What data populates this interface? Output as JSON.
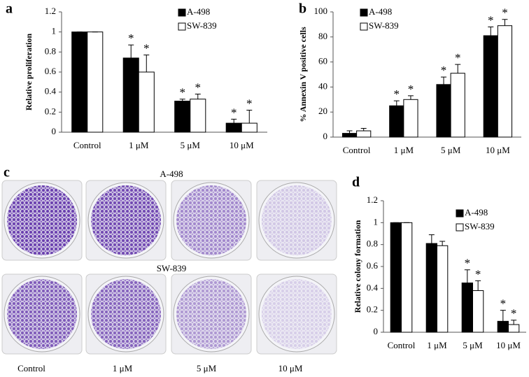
{
  "chart_data": [
    {
      "type": "bar",
      "panel": "a",
      "y_label": "Relative proliferation",
      "categories": [
        "Control",
        "1 μM",
        "5 μM",
        "10 μM"
      ],
      "series": [
        {
          "name": "A-498",
          "color": "#000000",
          "values": [
            1,
            0.74,
            0.31,
            0.09
          ],
          "errors": [
            0,
            0.13,
            0.02,
            0.04
          ],
          "marks": [
            null,
            "*",
            "*",
            "*"
          ]
        },
        {
          "name": "SW-839",
          "color": "#ffffff",
          "values": [
            1,
            0.6,
            0.33,
            0.09
          ],
          "errors": [
            0,
            0.17,
            0.05,
            0.13
          ],
          "marks": [
            null,
            "*",
            "*",
            "*"
          ]
        }
      ],
      "ylim": [
        0,
        1.2
      ],
      "yticks": [
        0,
        0.2,
        0.4,
        0.6,
        0.8,
        1,
        1.2
      ],
      "legend": "top-right"
    },
    {
      "type": "bar",
      "panel": "b",
      "y_label": "% Annexin V positive cells",
      "categories": [
        "Control",
        "1 μM",
        "5 μM",
        "10 μM"
      ],
      "series": [
        {
          "name": "A-498",
          "color": "#000000",
          "values": [
            3,
            25,
            42,
            81
          ],
          "errors": [
            2,
            4,
            6,
            7
          ],
          "marks": [
            null,
            "*",
            "*",
            "*"
          ]
        },
        {
          "name": "SW-839",
          "color": "#ffffff",
          "values": [
            5,
            30,
            51,
            89
          ],
          "errors": [
            2,
            3,
            7,
            5
          ],
          "marks": [
            null,
            "*",
            "*",
            "*"
          ]
        }
      ],
      "ylim": [
        0,
        100
      ],
      "yticks": [
        0,
        20,
        40,
        60,
        80,
        100
      ],
      "legend": "top-left"
    },
    {
      "type": "bar",
      "panel": "d",
      "y_label": "Relative colony formation",
      "categories": [
        "Control",
        "1 μM",
        "5 μM",
        "10 μM"
      ],
      "series": [
        {
          "name": "A-498",
          "color": "#000000",
          "values": [
            1,
            0.81,
            0.45,
            0.1
          ],
          "errors": [
            0,
            0.08,
            0.12,
            0.1
          ],
          "marks": [
            null,
            null,
            "*",
            "*"
          ]
        },
        {
          "name": "SW-839",
          "color": "#ffffff",
          "values": [
            1,
            0.79,
            0.38,
            0.07
          ],
          "errors": [
            0,
            0.04,
            0.09,
            0.04
          ],
          "marks": [
            null,
            null,
            "*",
            "*"
          ]
        }
      ],
      "ylim": [
        0,
        1.2
      ],
      "yticks": [
        0,
        0.2,
        0.4,
        0.6,
        0.8,
        1,
        1.2
      ],
      "legend": "top-right"
    }
  ],
  "image_panel": {
    "panel": "c",
    "rows": [
      "A-498",
      "SW-839"
    ],
    "columns": [
      "Control",
      "1 μM",
      "5 μM",
      "10 μM"
    ]
  }
}
